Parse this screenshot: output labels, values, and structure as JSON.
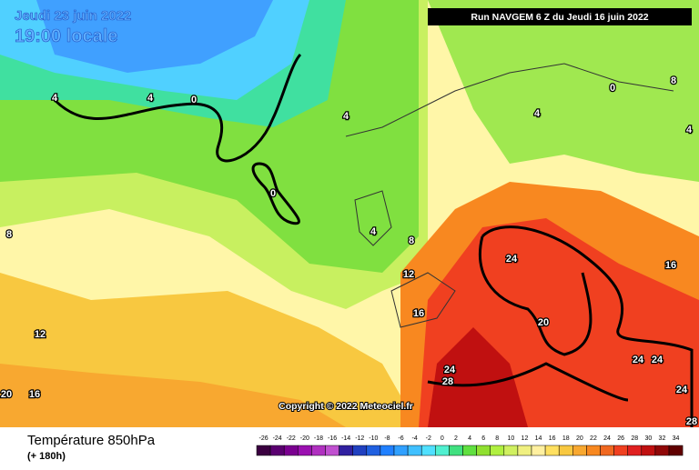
{
  "header": {
    "date": "Jeudi 23 juin 2022",
    "time": "19:00 locale",
    "run": "Run NAVGEM 6 Z du Jeudi 16 juin 2022"
  },
  "map": {
    "copyright": "Copyright © 2022 Meteociel.fr",
    "contour_labels": [
      4,
      4,
      0,
      4,
      0,
      4,
      8,
      12,
      16,
      12,
      8,
      20,
      16,
      24,
      20,
      24,
      28,
      24,
      24,
      24,
      16,
      0,
      8,
      4,
      4,
      28
    ]
  },
  "legend": {
    "title": "Température 850hPa",
    "subtitle": "(+ 180h)",
    "scale": [
      -26,
      -24,
      -22,
      -20,
      -18,
      -16,
      -14,
      -12,
      -10,
      -8,
      -6,
      -4,
      -2,
      0,
      2,
      4,
      6,
      8,
      10,
      12,
      14,
      16,
      18,
      20,
      22,
      24,
      26,
      28,
      30,
      32,
      34
    ],
    "colors": [
      "#3a0040",
      "#5a0070",
      "#7a0090",
      "#9a10b0",
      "#b030c0",
      "#c050d0",
      "#3020a0",
      "#2040c0",
      "#2060e0",
      "#2080ff",
      "#30a0ff",
      "#40c0ff",
      "#50e0ff",
      "#50f0d0",
      "#40e080",
      "#60e040",
      "#90e030",
      "#b0f040",
      "#d0f060",
      "#f0f080",
      "#fff0a0",
      "#ffe060",
      "#f8c840",
      "#f8a830",
      "#f88820",
      "#f06820",
      "#f04020",
      "#e02020",
      "#c01010",
      "#900808",
      "#600000"
    ]
  }
}
